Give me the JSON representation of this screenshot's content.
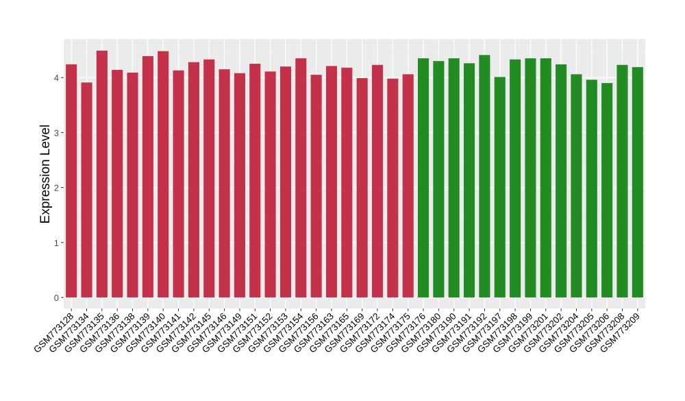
{
  "chart_data": {
    "type": "bar",
    "title": "",
    "xlabel": "",
    "ylabel": "Expression Level",
    "ylim": [
      -0.2,
      4.7
    ],
    "yticks": [
      0,
      1,
      2,
      3,
      4
    ],
    "grid": true,
    "legend": "none",
    "categories": [
      "GSM773128",
      "GSM773134",
      "GSM773135",
      "GSM773136",
      "GSM773138",
      "GSM773139",
      "GSM773140",
      "GSM773141",
      "GSM773142",
      "GSM773145",
      "GSM773146",
      "GSM773149",
      "GSM773151",
      "GSM773152",
      "GSM773153",
      "GSM773154",
      "GSM773156",
      "GSM773163",
      "GSM773165",
      "GSM773169",
      "GSM773172",
      "GSM773174",
      "GSM773175",
      "GSM773176",
      "GSM773180",
      "GSM773190",
      "GSM773191",
      "GSM773192",
      "GSM773197",
      "GSM773198",
      "GSM773199",
      "GSM773201",
      "GSM773202",
      "GSM773204",
      "GSM773205",
      "GSM773206",
      "GSM773208",
      "GSM773209"
    ],
    "values": [
      4.24,
      3.91,
      4.49,
      4.14,
      4.09,
      4.39,
      4.48,
      4.13,
      4.28,
      4.33,
      4.15,
      4.08,
      4.25,
      4.11,
      4.2,
      4.35,
      4.05,
      4.21,
      4.18,
      3.99,
      4.23,
      3.98,
      4.06,
      4.35,
      4.3,
      4.35,
      4.26,
      4.41,
      4.01,
      4.33,
      4.35,
      4.35,
      4.24,
      4.06,
      3.96,
      3.9,
      4.23,
      4.19
    ],
    "groups": [
      0,
      0,
      0,
      0,
      0,
      0,
      0,
      0,
      0,
      0,
      0,
      0,
      0,
      0,
      0,
      0,
      0,
      0,
      0,
      0,
      0,
      0,
      0,
      1,
      1,
      1,
      1,
      1,
      1,
      1,
      1,
      1,
      1,
      1,
      1,
      1,
      1,
      1
    ],
    "group_colors": [
      "#c3324a",
      "#228b22"
    ]
  }
}
